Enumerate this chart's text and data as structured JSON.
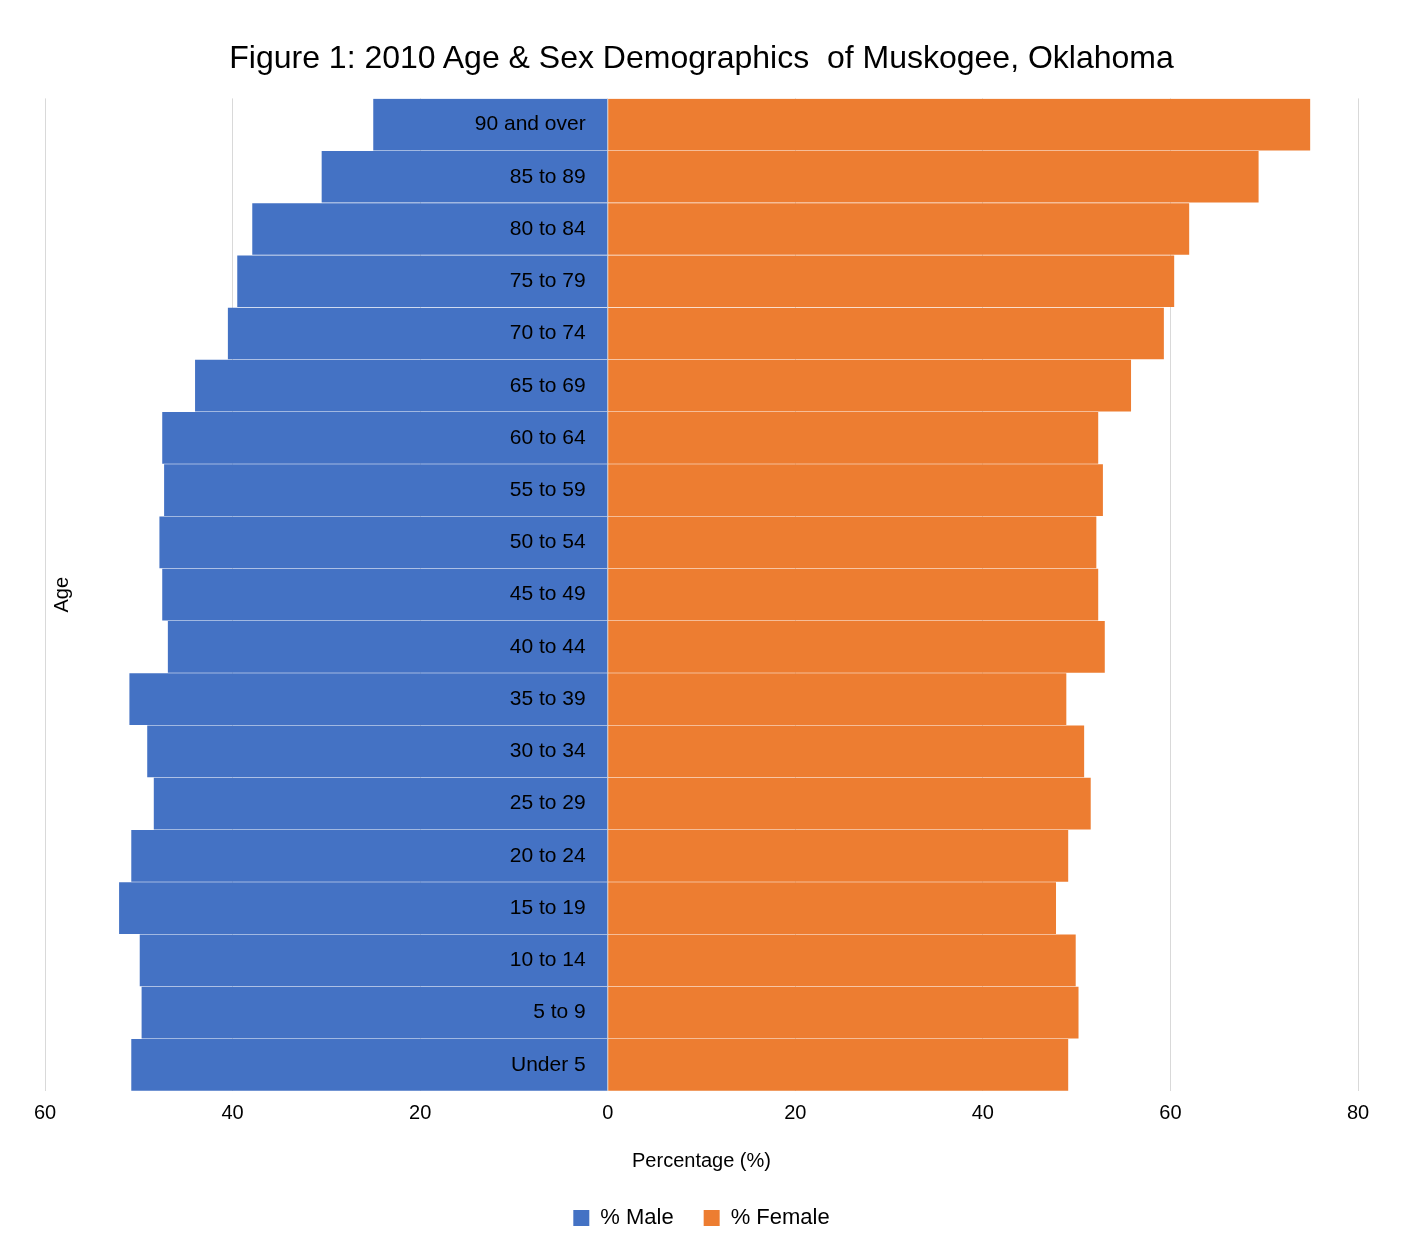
{
  "chart_data": {
    "type": "bar",
    "orientation": "horizontal",
    "stacked": true,
    "title": "Figure 1: 2010 Age & Sex Demographics  of Muskogee, Oklahoma",
    "xlabel": "Percentage (%)",
    "ylabel": "Age",
    "categories": [
      "90 and over",
      "85 to 89",
      "80 to 84",
      "75 to 79",
      "70 to 74",
      "65 to 69",
      "60 to 64",
      "55 to 59",
      "50 to 54",
      "45 to 49",
      "40 to 44",
      "35 to 39",
      "30 to 34",
      "25 to 29",
      "20 to 24",
      "15 to 19",
      "10 to 14",
      "5 to 9",
      "Under 5"
    ],
    "series": [
      {
        "name": "% Male",
        "color": "#4472c4",
        "values": [
          -25.0,
          -30.5,
          -37.9,
          -39.5,
          -40.5,
          -44.0,
          -47.5,
          -47.3,
          -47.8,
          -47.5,
          -46.9,
          -51.0,
          -49.1,
          -48.4,
          -50.8,
          -52.1,
          -49.9,
          -49.7,
          -50.8
        ]
      },
      {
        "name": "% Female",
        "color": "#ed7d31",
        "values": [
          74.9,
          69.4,
          62.0,
          60.4,
          59.3,
          55.8,
          52.3,
          52.8,
          52.1,
          52.3,
          53.0,
          48.9,
          50.8,
          51.5,
          49.1,
          47.8,
          49.9,
          50.2,
          49.1
        ]
      }
    ],
    "xlim": [
      -60,
      80
    ],
    "xticks": [
      {
        "value": -60,
        "label": "60"
      },
      {
        "value": -40,
        "label": "40"
      },
      {
        "value": -20,
        "label": "20"
      },
      0,
      20,
      40,
      60,
      80
    ],
    "grid": "x",
    "legend": "bottom"
  }
}
